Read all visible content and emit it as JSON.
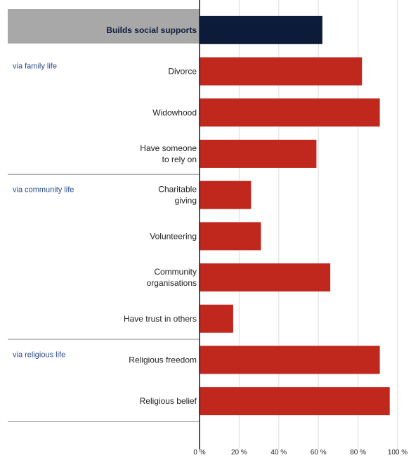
{
  "chart_data": {
    "type": "bar",
    "orientation": "horizontal",
    "categories": [
      "Builds social supports",
      "Divorce",
      "Widowhood",
      "Have someone to rely on",
      "Charitable giving",
      "Volunteering",
      "Community organisations",
      "Have trust in others",
      "Religious freedom",
      "Religious belief"
    ],
    "category_lines": [
      [
        "Builds social supports"
      ],
      [
        "Divorce"
      ],
      [
        "Widowhood"
      ],
      [
        "Have someone",
        "to rely on"
      ],
      [
        "Charitable",
        "giving"
      ],
      [
        "Volunteering"
      ],
      [
        "Community",
        "organisations"
      ],
      [
        "Have trust in others"
      ],
      [
        "Religious freedom"
      ],
      [
        "Religious belief"
      ]
    ],
    "values": [
      62,
      82,
      91,
      59,
      26,
      31,
      66,
      17,
      91,
      96
    ],
    "groups": [
      {
        "label": "via family life",
        "categories": [
          "Divorce",
          "Widowhood",
          "Have someone to rely on"
        ]
      },
      {
        "label": "via community life",
        "categories": [
          "Charitable giving",
          "Volunteering",
          "Community organisations",
          "Have trust in others"
        ]
      },
      {
        "label": "via religious life",
        "categories": [
          "Religious freedom",
          "Religious belief"
        ]
      }
    ],
    "highlight_category": "Builds social supports",
    "xlim": [
      0,
      100
    ],
    "xticks": [
      "0 %",
      "20 %",
      "40 %",
      "60 %",
      "80 %",
      "100 %"
    ],
    "grid": true,
    "colors": {
      "highlight_bar": "#0d1b3a",
      "bar": "#c0281e",
      "header_band": "#a8a8a8",
      "axis": "#0d1b3a",
      "grid": "#dddddd",
      "group_label": "#2a4a8a"
    }
  }
}
